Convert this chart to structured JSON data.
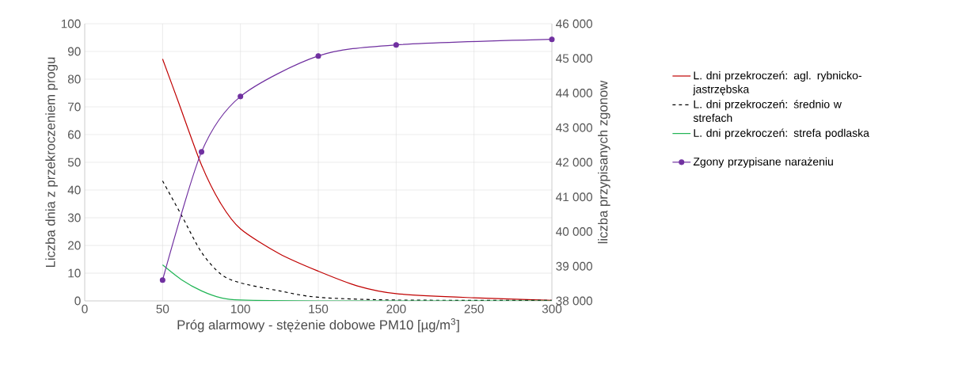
{
  "chart_data": {
    "type": "line",
    "xlabel": "Próg alarmowy - stężenie dobowe PM10 [µg/m$^{3}$]",
    "ylabel": "Liczba dnia z przekroczeniem progu",
    "y2label": "liczba przypisanych zgonow",
    "xlim": [
      0,
      300
    ],
    "xticks": [
      0,
      50,
      100,
      150,
      200,
      250,
      300
    ],
    "ylim": [
      0,
      100
    ],
    "yticks": [
      0,
      10,
      20,
      30,
      40,
      50,
      60,
      70,
      80,
      90,
      100
    ],
    "y2lim": [
      38000,
      46000
    ],
    "y2ticks": [
      {
        "value": 38000,
        "label": "38 000"
      },
      {
        "value": 39000,
        "label": "39 000"
      },
      {
        "value": 40000,
        "label": "40 000"
      },
      {
        "value": 41000,
        "label": "41 000"
      },
      {
        "value": 42000,
        "label": "42 000"
      },
      {
        "value": 43000,
        "label": "43 000"
      },
      {
        "value": 44000,
        "label": "44 000"
      },
      {
        "value": 45000,
        "label": "45 000"
      },
      {
        "value": 46000,
        "label": "46 000"
      }
    ],
    "grid": true,
    "legend": "right",
    "series": [
      {
        "name": "L. dni przekroczeń: agl. rybnicko-jastrzębska",
        "color": "#c00000",
        "line_style": "solid",
        "marker": "none",
        "x": [
          50,
          60,
          75,
          87.5,
          100,
          125,
          150,
          175,
          200,
          250,
          300
        ],
        "values": [
          87.3,
          72,
          49,
          35,
          26,
          17,
          10.7,
          5.4,
          2.6,
          1.1,
          0.2
        ]
      },
      {
        "name": "L. dni przekroczeń: średnio w strefach",
        "color": "#000000",
        "line_style": "dashed",
        "marker": "none",
        "x": [
          50,
          62.5,
          75,
          87.5,
          100,
          125,
          150,
          200,
          300
        ],
        "values": [
          43.3,
          30.5,
          17.5,
          9.6,
          6.5,
          3.6,
          1.3,
          0.3,
          0.2
        ]
      },
      {
        "name": "L. dni przekroczeń: strefa podlaska",
        "color": "#22b556",
        "line_style": "solid",
        "marker": "none",
        "x": [
          50,
          62.5,
          75,
          87.5,
          100,
          150,
          300
        ],
        "values": [
          13,
          7.5,
          3.6,
          1.1,
          0.3,
          0,
          0
        ]
      },
      {
        "name": "Zgony przypisane narażeniu",
        "color": "#7030a0",
        "line_style": "solid",
        "marker": "circle",
        "axis": "y2",
        "x": [
          50,
          75,
          100,
          150,
          200,
          300
        ],
        "values": [
          38600,
          42300,
          43900,
          45070,
          45390,
          45550
        ]
      }
    ]
  }
}
